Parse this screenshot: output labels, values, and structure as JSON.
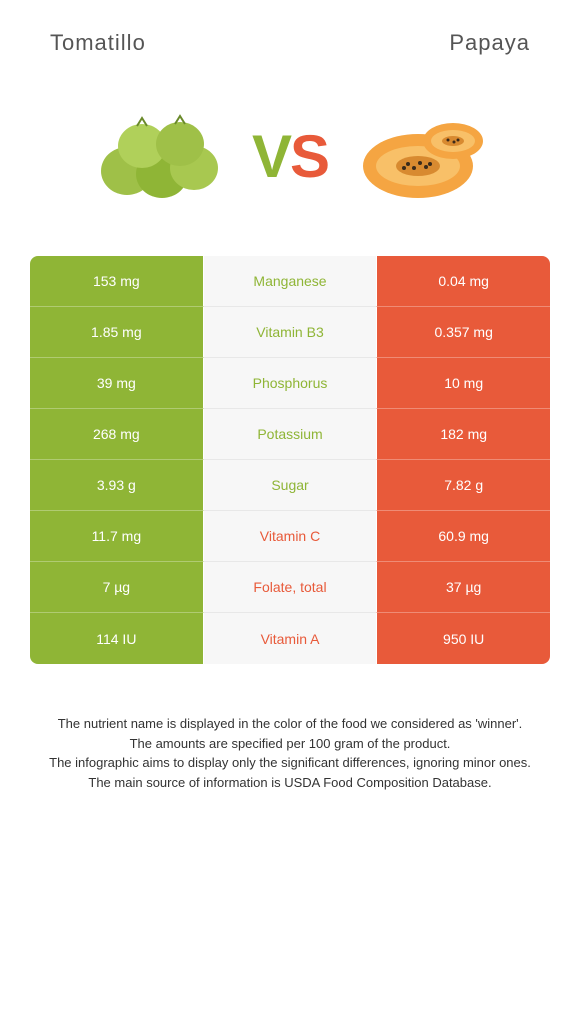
{
  "title_left": "Tomatillo",
  "title_right": "Papaya",
  "vs_v": "V",
  "vs_s": "S",
  "colors": {
    "left": "#8fb536",
    "right": "#e85a3a",
    "mid_bg": "#f7f7f7",
    "winner_left_text": "#8fb536",
    "winner_right_text": "#e85a3a"
  },
  "rows": [
    {
      "left": "153 mg",
      "mid": "Manganese",
      "right": "0.04 mg",
      "winner": "left"
    },
    {
      "left": "1.85 mg",
      "mid": "Vitamin B3",
      "right": "0.357 mg",
      "winner": "left"
    },
    {
      "left": "39 mg",
      "mid": "Phosphorus",
      "right": "10 mg",
      "winner": "left"
    },
    {
      "left": "268 mg",
      "mid": "Potassium",
      "right": "182 mg",
      "winner": "left"
    },
    {
      "left": "3.93 g",
      "mid": "Sugar",
      "right": "7.82 g",
      "winner": "left"
    },
    {
      "left": "11.7 mg",
      "mid": "Vitamin C",
      "right": "60.9 mg",
      "winner": "right"
    },
    {
      "left": "7 µg",
      "mid": "Folate, total",
      "right": "37 µg",
      "winner": "right"
    },
    {
      "left": "114 IU",
      "mid": "Vitamin A",
      "right": "950 IU",
      "winner": "right"
    }
  ],
  "footer": {
    "l1": "The nutrient name is displayed in the color of the food we considered as 'winner'.",
    "l2": "The amounts are specified per 100 gram of the product.",
    "l3": "The infographic aims to display only the significant differences, ignoring minor ones.",
    "l4": "The main source of information is USDA Food Composition Database."
  }
}
